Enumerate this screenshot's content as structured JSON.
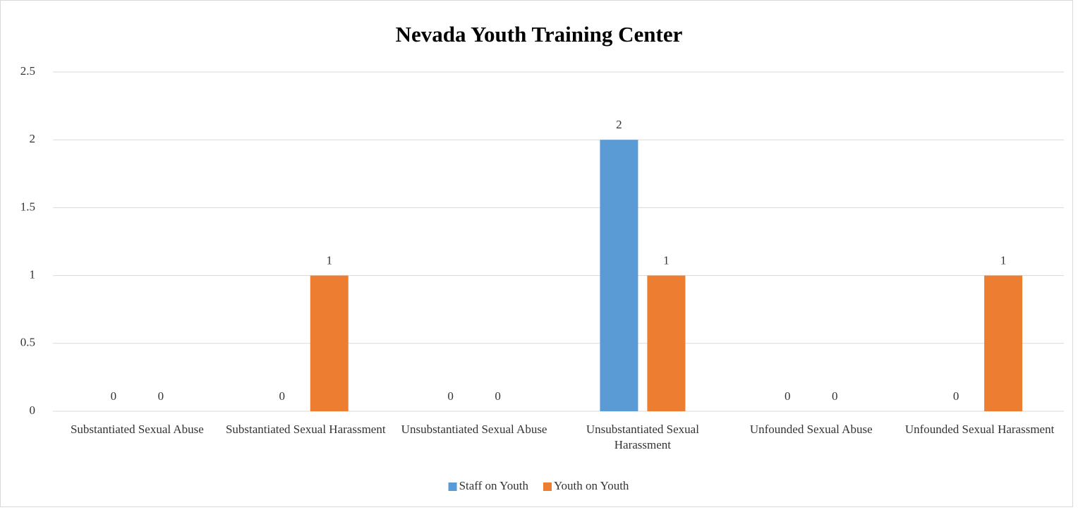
{
  "chart_data": {
    "type": "bar",
    "title": "Nevada Youth Training Center",
    "categories": [
      "Substantiated Sexual Abuse",
      "Substantiated Sexual Harassment",
      "Unsubstantiated Sexual Abuse",
      "Unsubstantiated Sexual Harassment",
      "Unfounded Sexual Abuse",
      "Unfounded Sexual Harassment"
    ],
    "series": [
      {
        "name": "Staff on Youth",
        "color": "#5b9bd5",
        "values": [
          0,
          0,
          0,
          2,
          0,
          0
        ]
      },
      {
        "name": "Youth on Youth",
        "color": "#ed7d31",
        "values": [
          0,
          1,
          0,
          1,
          0,
          1
        ]
      }
    ],
    "ylim": [
      0,
      2.5
    ],
    "yticks": [
      0,
      0.5,
      1,
      1.5,
      2,
      2.5
    ],
    "grid": true,
    "legend": "bottom"
  }
}
